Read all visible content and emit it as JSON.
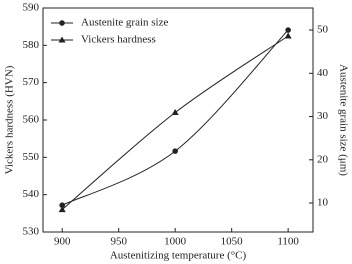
{
  "chart_data": {
    "type": "line",
    "xlabel": "Austenitizing temperature (°C)",
    "ylabel": "Vickers hardness (HVN)",
    "y2label": "Austenite grain size (μm)",
    "x": [
      900,
      1000,
      1100
    ],
    "xlim": [
      883,
      1122
    ],
    "xticks": [
      900,
      950,
      1000,
      1050,
      1100
    ],
    "ylim": [
      530,
      590
    ],
    "yticks": [
      530,
      540,
      550,
      560,
      570,
      580,
      590
    ],
    "y2lim": [
      3.3,
      55.1
    ],
    "y2ticks": [
      10,
      20,
      30,
      40,
      50
    ],
    "legend": "upper left",
    "series": [
      {
        "name": "Austenite grain size",
        "color": "#222222",
        "marker": "circle",
        "axis": "y2",
        "values": [
          9.5,
          22,
          50
        ]
      },
      {
        "name": "Vickers hardness",
        "color": "#222222",
        "marker": "triangle",
        "values": [
          536,
          562,
          582.5
        ]
      }
    ]
  }
}
